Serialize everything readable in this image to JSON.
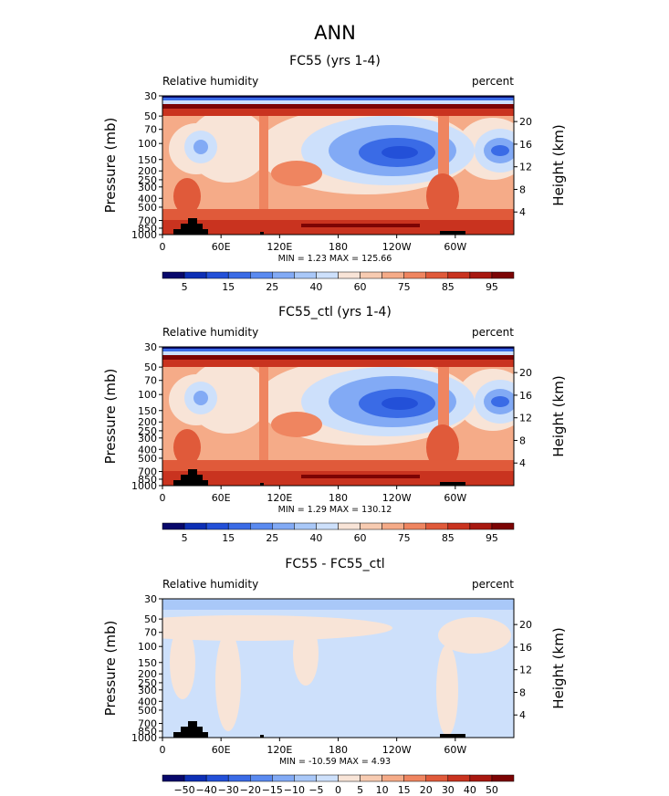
{
  "figure_title": "ANN",
  "colors": {
    "full": [
      "#08086b",
      "#0d2fb5",
      "#2350d8",
      "#3a6be6",
      "#5a8af0",
      "#82aaf5",
      "#a9c8f8",
      "#cde0fb",
      "#f8e4d7",
      "#f7cbb1",
      "#f5ab88",
      "#ef8560",
      "#e05a3a",
      "#c9331f",
      "#a81810",
      "#7c0404"
    ],
    "diff": [
      "#08086b",
      "#0d2fb5",
      "#2350d8",
      "#3a6be6",
      "#5a8af0",
      "#82aaf5",
      "#a9c8f8",
      "#cde0fb",
      "#f8e4d7",
      "#f7cbb1",
      "#f5ab88",
      "#ef8560",
      "#e05a3a",
      "#c9331f",
      "#a81810",
      "#7c0404"
    ]
  },
  "chart_data": [
    {
      "type": "contour",
      "title": "FC55 (yrs 1-4)",
      "left_label": "Relative humidity",
      "right_label": "percent",
      "ylabel": "Pressure (mb)",
      "ylabel2": "Height (km)",
      "x_ticks": [
        "0",
        "60E",
        "120E",
        "180",
        "120W",
        "60W"
      ],
      "x_tick_values": [
        0,
        60,
        120,
        180,
        240,
        300
      ],
      "xlim": [
        0,
        360
      ],
      "y_ticks": [
        "30",
        "50",
        "70",
        "100",
        "150",
        "200",
        "250",
        "300",
        "400",
        "500",
        "700",
        "850",
        "1000"
      ],
      "y_tick_values": [
        30,
        50,
        70,
        100,
        150,
        200,
        250,
        300,
        400,
        500,
        700,
        850,
        1000
      ],
      "height_ticks": [
        "4",
        "8",
        "12",
        "16",
        "20"
      ],
      "height_tick_values": [
        4,
        8,
        12,
        16,
        20
      ],
      "stats": "MIN =     1.23   MAX =  125.66",
      "colorbar_labels": [
        "5",
        "15",
        "25",
        "40",
        "60",
        "75",
        "85",
        "95"
      ],
      "colorbar_levels": [
        0,
        5,
        10,
        15,
        20,
        25,
        30,
        40,
        50,
        60,
        70,
        75,
        80,
        85,
        90,
        95,
        100
      ]
    },
    {
      "type": "contour",
      "title": "FC55_ctl (yrs 1-4)",
      "left_label": "Relative humidity",
      "right_label": "percent",
      "ylabel": "Pressure (mb)",
      "ylabel2": "Height (km)",
      "x_ticks": [
        "0",
        "60E",
        "120E",
        "180",
        "120W",
        "60W"
      ],
      "x_tick_values": [
        0,
        60,
        120,
        180,
        240,
        300
      ],
      "xlim": [
        0,
        360
      ],
      "y_ticks": [
        "30",
        "50",
        "70",
        "100",
        "150",
        "200",
        "250",
        "300",
        "400",
        "500",
        "700",
        "850",
        "1000"
      ],
      "y_tick_values": [
        30,
        50,
        70,
        100,
        150,
        200,
        250,
        300,
        400,
        500,
        700,
        850,
        1000
      ],
      "height_ticks": [
        "4",
        "8",
        "12",
        "16",
        "20"
      ],
      "height_tick_values": [
        4,
        8,
        12,
        16,
        20
      ],
      "stats": "MIN =     1.29   MAX =  130.12",
      "colorbar_labels": [
        "5",
        "15",
        "25",
        "40",
        "60",
        "75",
        "85",
        "95"
      ],
      "colorbar_levels": [
        0,
        5,
        10,
        15,
        20,
        25,
        30,
        40,
        50,
        60,
        70,
        75,
        80,
        85,
        90,
        95,
        100
      ]
    },
    {
      "type": "contour",
      "title": "FC55 - FC55_ctl",
      "left_label": "Relative humidity",
      "right_label": "percent",
      "ylabel": "Pressure (mb)",
      "ylabel2": "Height (km)",
      "x_ticks": [
        "0",
        "60E",
        "120E",
        "180",
        "120W",
        "60W"
      ],
      "x_tick_values": [
        0,
        60,
        120,
        180,
        240,
        300
      ],
      "xlim": [
        0,
        360
      ],
      "y_ticks": [
        "30",
        "50",
        "70",
        "100",
        "150",
        "200",
        "250",
        "300",
        "400",
        "500",
        "700",
        "850",
        "1000"
      ],
      "y_tick_values": [
        30,
        50,
        70,
        100,
        150,
        200,
        250,
        300,
        400,
        500,
        700,
        850,
        1000
      ],
      "height_ticks": [
        "4",
        "8",
        "12",
        "16",
        "20"
      ],
      "height_tick_values": [
        4,
        8,
        12,
        16,
        20
      ],
      "stats": "MIN =  -10.59   MAX =     4.93",
      "colorbar_labels": [
        "−50",
        "−40",
        "−30",
        "−20",
        "−15",
        "−10",
        "−5",
        "0",
        "5",
        "10",
        "15",
        "20",
        "30",
        "40",
        "50"
      ],
      "colorbar_levels": [
        -60,
        -50,
        -40,
        -30,
        -20,
        -15,
        -10,
        -5,
        0,
        5,
        10,
        15,
        20,
        30,
        40,
        50,
        60
      ]
    }
  ]
}
